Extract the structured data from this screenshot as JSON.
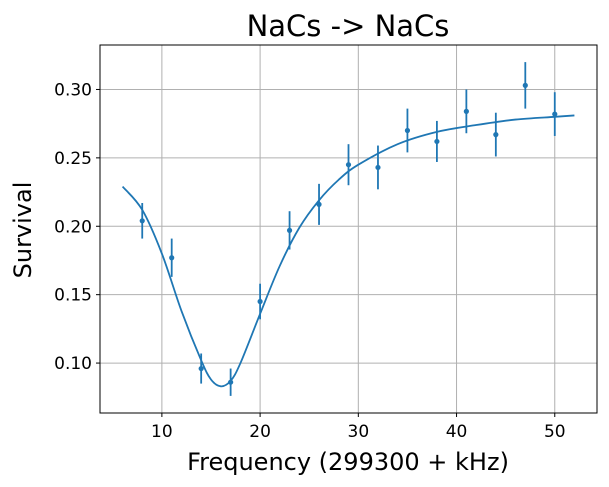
{
  "chart_data": {
    "type": "scatter",
    "title": "NaCs -> NaCs",
    "xlabel": "Frequency (299300 + kHz)",
    "ylabel": "Survival",
    "xlim": [
      3.7,
      54.3
    ],
    "ylim": [
      0.0635,
      0.3325
    ],
    "xticks": [
      10,
      20,
      30,
      40,
      50
    ],
    "xtick_labels": [
      "10",
      "20",
      "30",
      "40",
      "50"
    ],
    "yticks": [
      0.1,
      0.15,
      0.2,
      0.25,
      0.3
    ],
    "ytick_labels": [
      "0.10",
      "0.15",
      "0.20",
      "0.25",
      "0.30"
    ],
    "grid": true,
    "color": "#1f77b4",
    "series": [
      {
        "type": "errorbar",
        "x": [
          8,
          11,
          14,
          17,
          20,
          23,
          26,
          29,
          32,
          35,
          38,
          41,
          44,
          47,
          50
        ],
        "y": [
          0.204,
          0.177,
          0.096,
          0.086,
          0.145,
          0.197,
          0.216,
          0.245,
          0.243,
          0.27,
          0.262,
          0.284,
          0.267,
          0.303,
          0.282
        ],
        "yerr": [
          0.013,
          0.014,
          0.011,
          0.01,
          0.013,
          0.014,
          0.015,
          0.015,
          0.016,
          0.016,
          0.015,
          0.016,
          0.016,
          0.017,
          0.016
        ]
      },
      {
        "type": "line",
        "x": [
          6,
          8,
          10,
          12,
          14,
          15,
          16,
          17,
          18,
          20,
          22,
          24,
          26,
          28,
          30,
          34,
          38,
          42,
          46,
          50,
          52
        ],
        "y": [
          0.229,
          0.212,
          0.18,
          0.138,
          0.102,
          0.088,
          0.083,
          0.087,
          0.1,
          0.136,
          0.171,
          0.199,
          0.219,
          0.234,
          0.245,
          0.26,
          0.269,
          0.274,
          0.278,
          0.28,
          0.281
        ]
      }
    ]
  }
}
